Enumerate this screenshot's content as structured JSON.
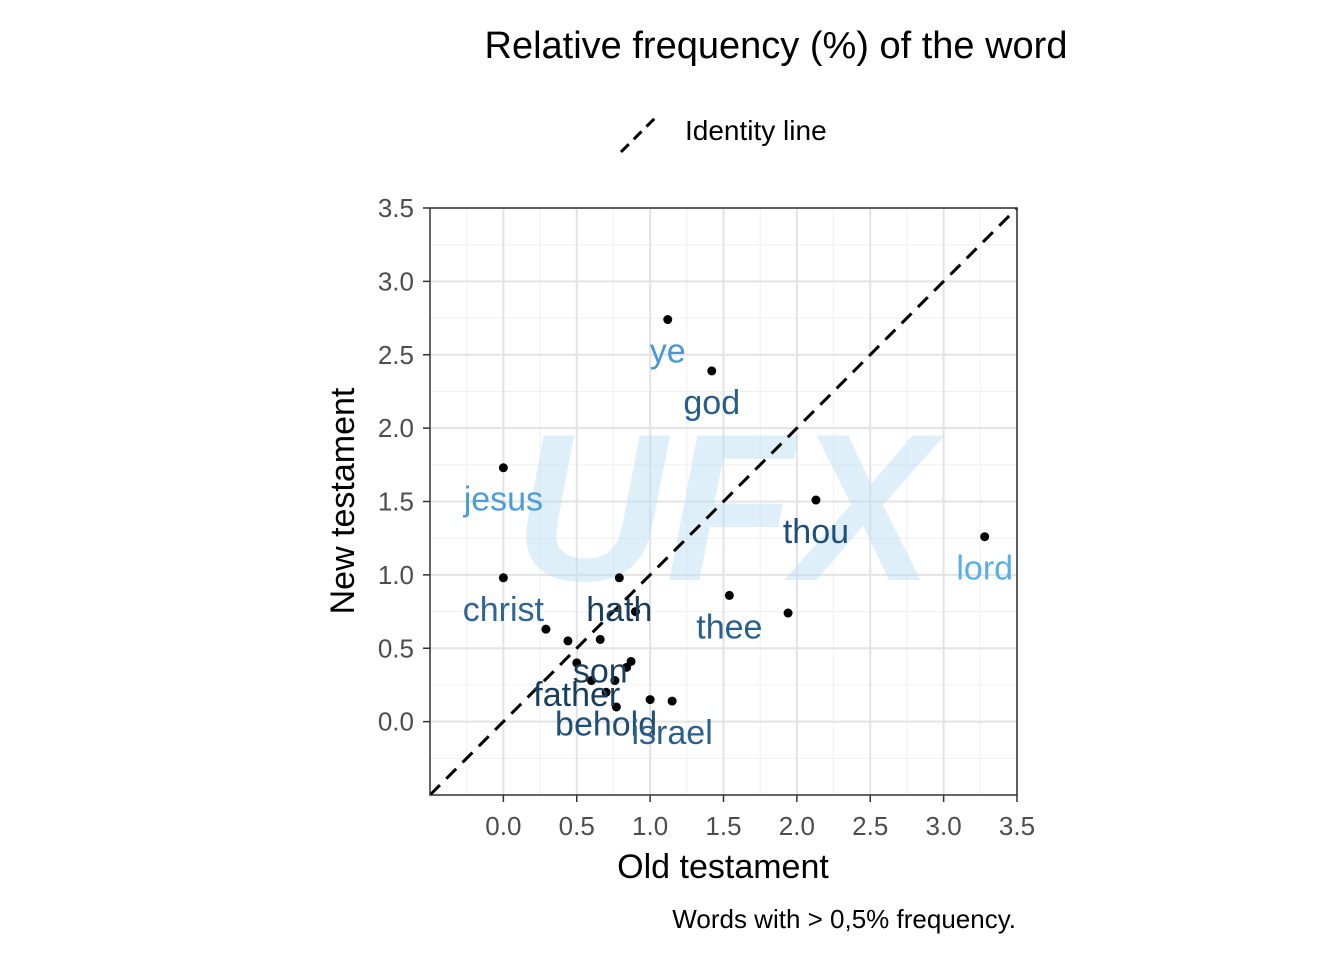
{
  "chart_data": {
    "type": "scatter",
    "title": "Relative frequency (%) of the word",
    "xlabel": "Old testament",
    "ylabel": "New testament",
    "caption": "Words with > 0,5% frequency.",
    "legend": {
      "label": "Identity line",
      "position": "top"
    },
    "watermark": "UFX",
    "grid": true,
    "xlim": [
      -0.5,
      3.5
    ],
    "ylim": [
      -0.5,
      3.5
    ],
    "xticks": [
      "0.0",
      "0.5",
      "1.0",
      "1.5",
      "2.0",
      "2.5",
      "3.0",
      "3.5"
    ],
    "yticks": [
      "0.0",
      "0.5",
      "1.0",
      "1.5",
      "2.0",
      "2.5",
      "3.0",
      "3.5"
    ],
    "reference_line": {
      "type": "identity",
      "style": "dashed",
      "color": "#000000"
    },
    "points": [
      {
        "x": 1.12,
        "y": 2.74,
        "label": "ye",
        "color": "#4b97d1"
      },
      {
        "x": 1.42,
        "y": 2.39,
        "label": "god",
        "color": "#2a5c8a"
      },
      {
        "x": 0.0,
        "y": 1.73,
        "label": "jesus",
        "color": "#4b9cd8"
      },
      {
        "x": 2.13,
        "y": 1.51,
        "label": "thou",
        "color": "#1f4e79"
      },
      {
        "x": 3.28,
        "y": 1.26,
        "label": "lord",
        "color": "#56b0ea"
      },
      {
        "x": 0.0,
        "y": 0.98,
        "label": "christ",
        "color": "#2f6494"
      },
      {
        "x": 0.79,
        "y": 0.98,
        "label": "hath",
        "color": "#1a3d5c"
      },
      {
        "x": 1.54,
        "y": 0.86,
        "label": "thee",
        "color": "#2b5f8d"
      },
      {
        "x": 1.94,
        "y": 0.74,
        "label": "",
        "color": "#000000"
      },
      {
        "x": 0.9,
        "y": 0.75,
        "label": "",
        "color": "#000000"
      },
      {
        "x": 0.29,
        "y": 0.63,
        "label": "",
        "color": "#000000"
      },
      {
        "x": 0.44,
        "y": 0.55,
        "label": "",
        "color": "#000000"
      },
      {
        "x": 0.66,
        "y": 0.56,
        "label": "son",
        "color": "#1a3d5c"
      },
      {
        "x": 0.87,
        "y": 0.41,
        "label": "",
        "color": "#000000"
      },
      {
        "x": 0.5,
        "y": 0.4,
        "label": "father",
        "color": "#1a3d5c"
      },
      {
        "x": 0.84,
        "y": 0.37,
        "label": "",
        "color": "#000000"
      },
      {
        "x": 0.6,
        "y": 0.28,
        "label": "",
        "color": "#000000"
      },
      {
        "x": 0.76,
        "y": 0.28,
        "label": "",
        "color": "#000000"
      },
      {
        "x": 0.7,
        "y": 0.2,
        "label": "behold",
        "color": "#1f4e79"
      },
      {
        "x": 1.0,
        "y": 0.15,
        "label": "",
        "color": "#000000"
      },
      {
        "x": 1.15,
        "y": 0.14,
        "label": "israel",
        "color": "#2b5f8d"
      },
      {
        "x": 0.77,
        "y": 0.1,
        "label": "",
        "color": "#000000"
      }
    ]
  }
}
